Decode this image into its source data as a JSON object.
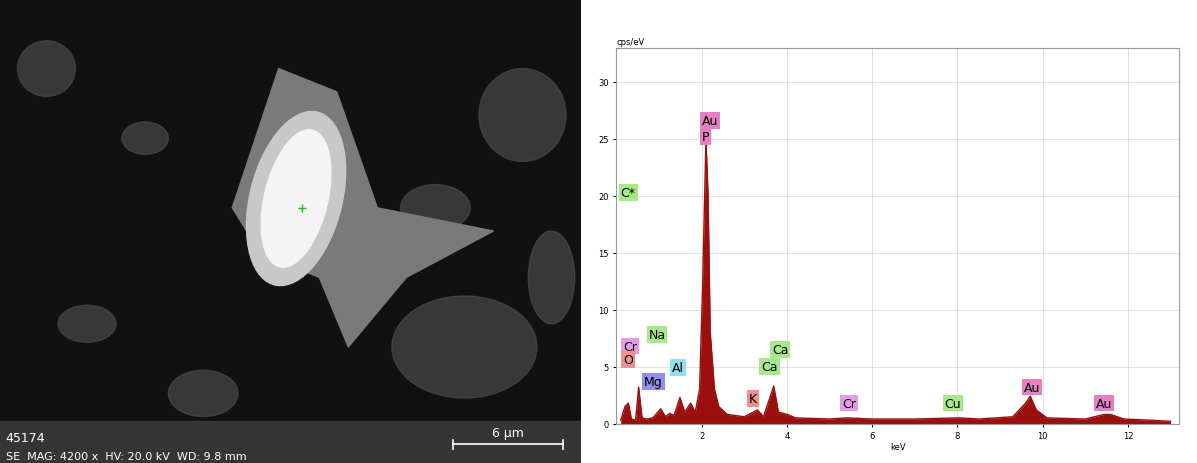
{
  "image": {
    "id": "45174",
    "info": "SE  MAG: 4200 x  HV: 20.0 kV  WD: 9.8 mm",
    "scale_bar": "6 µm"
  },
  "chart_data": {
    "type": "area",
    "x_label": "keV",
    "y_label": "cps/eV",
    "color": "#9b0f0f",
    "x": [
      0.1,
      0.2,
      0.28,
      0.35,
      0.45,
      0.52,
      0.6,
      0.7,
      0.85,
      1.04,
      1.15,
      1.25,
      1.35,
      1.49,
      1.6,
      1.74,
      1.85,
      1.95,
      2.02,
      2.1,
      2.15,
      2.2,
      2.3,
      2.4,
      2.6,
      3.0,
      3.31,
      3.45,
      3.69,
      3.8,
      4.01,
      4.2,
      5.0,
      5.41,
      6.0,
      7.0,
      8.05,
      8.5,
      9.3,
      9.6,
      9.71,
      9.85,
      10.1,
      11.0,
      11.44,
      11.6,
      11.9,
      12.5,
      13.0
    ],
    "values": [
      0.3,
      1.5,
      1.8,
      0.4,
      0.3,
      3.2,
      0.5,
      0.4,
      0.5,
      1.3,
      0.6,
      0.9,
      0.7,
      2.3,
      1.0,
      1.8,
      1.0,
      3.0,
      12.0,
      25.0,
      20.0,
      8.0,
      3.0,
      1.5,
      0.8,
      0.6,
      1.2,
      0.6,
      3.3,
      1.0,
      0.8,
      0.5,
      0.4,
      0.5,
      0.4,
      0.4,
      0.5,
      0.4,
      0.6,
      1.8,
      2.4,
      1.2,
      0.5,
      0.4,
      0.8,
      0.8,
      0.4,
      0.3,
      0.2
    ],
    "xlim": [
      0,
      13.2
    ],
    "ylim": [
      0,
      33
    ],
    "xticks": [
      2,
      4,
      6,
      8,
      10,
      12
    ],
    "yticks": [
      0,
      5,
      10,
      15,
      20,
      25,
      30
    ],
    "grid": true,
    "annotations": [
      {
        "text": "C*",
        "x": 0.1,
        "y": 20.3,
        "color": "#a6e88a"
      },
      {
        "text": "Cr",
        "x": 0.15,
        "y": 6.8,
        "color": "#e59ce6"
      },
      {
        "text": "O",
        "x": 0.15,
        "y": 5.6,
        "color": "#ef8f8f"
      },
      {
        "text": "Na",
        "x": 0.75,
        "y": 7.8,
        "color": "#a6e88a"
      },
      {
        "text": "Mg",
        "x": 0.65,
        "y": 3.7,
        "color": "#8f8ff0"
      },
      {
        "text": "Al",
        "x": 1.3,
        "y": 4.9,
        "color": "#8fe0f0"
      },
      {
        "text": "Au",
        "x": 2.0,
        "y": 26.6,
        "color": "#e77fc3"
      },
      {
        "text": "P",
        "x": 2.0,
        "y": 25.2,
        "color": "#e77fc3"
      },
      {
        "text": "K",
        "x": 3.1,
        "y": 2.2,
        "color": "#ef8f8f"
      },
      {
        "text": "Ca",
        "x": 3.65,
        "y": 6.5,
        "color": "#a6e88a"
      },
      {
        "text": "Ca",
        "x": 3.4,
        "y": 5.0,
        "color": "#a6e88a"
      },
      {
        "text": "Cr",
        "x": 5.3,
        "y": 1.8,
        "color": "#e59ce6"
      },
      {
        "text": "Cu",
        "x": 7.7,
        "y": 1.8,
        "color": "#a6e88a"
      },
      {
        "text": "Au",
        "x": 9.55,
        "y": 3.2,
        "color": "#e77fc3"
      },
      {
        "text": "Au",
        "x": 11.25,
        "y": 1.8,
        "color": "#e77fc3"
      }
    ]
  }
}
